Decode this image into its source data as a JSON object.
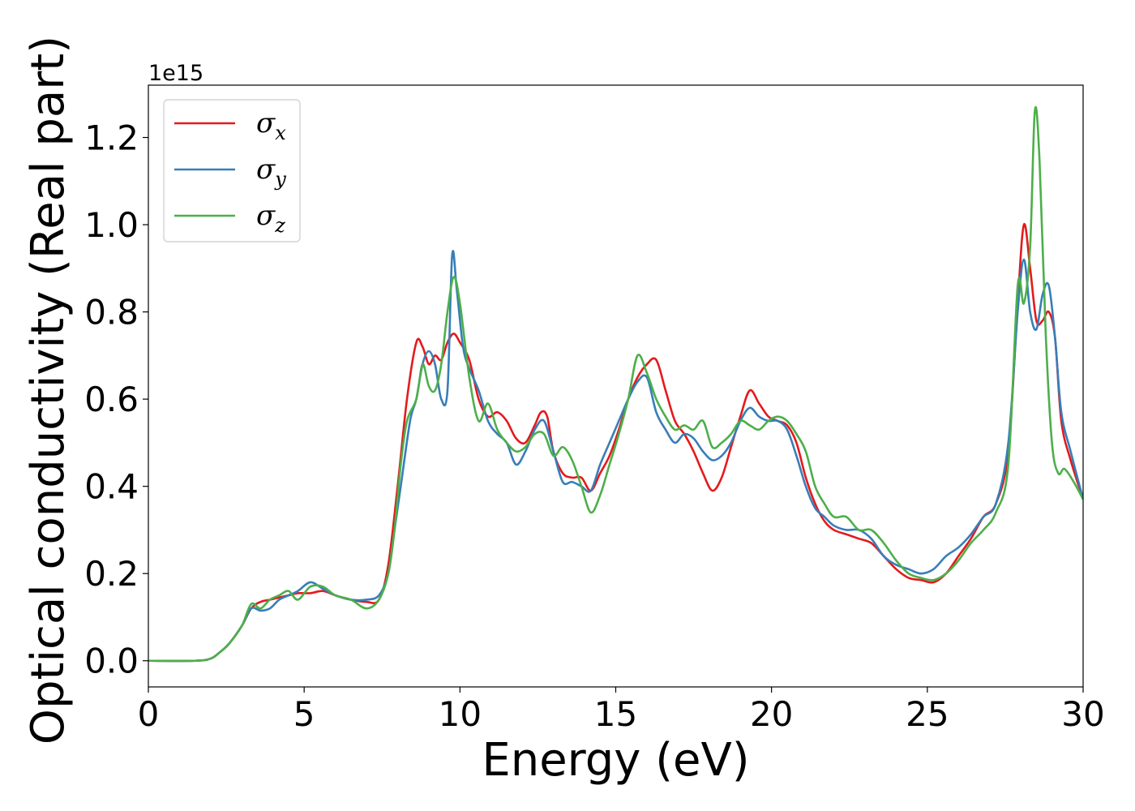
{
  "chart_data": {
    "type": "line",
    "xlabel": "Energy (eV)",
    "ylabel": "Optical conductivity (Real part)",
    "y_offset_label": "1e15",
    "xlim": [
      0,
      30
    ],
    "ylim": [
      -0.06,
      1.32
    ],
    "xticks": [
      0,
      5,
      10,
      15,
      20,
      25,
      30
    ],
    "xtick_labels": [
      "0",
      "5",
      "10",
      "15",
      "20",
      "25",
      "30"
    ],
    "yticks": [
      0.0,
      0.2,
      0.4,
      0.6,
      0.8,
      1.0,
      1.2
    ],
    "ytick_labels": [
      "0.0",
      "0.2",
      "0.4",
      "0.6",
      "0.8",
      "1.0",
      "1.2"
    ],
    "grid": false,
    "legend_position": "top-left",
    "series": [
      {
        "name": "σx",
        "legend_base": "σ",
        "legend_sub": "x",
        "color": "#e41a1c",
        "x": [
          0,
          1.5,
          2,
          2.3,
          2.6,
          3.0,
          3.3,
          3.6,
          3.9,
          4.2,
          4.5,
          4.8,
          5.2,
          5.6,
          6.0,
          6.5,
          7.0,
          7.4,
          7.7,
          8.0,
          8.3,
          8.6,
          8.8,
          9.0,
          9.2,
          9.4,
          9.6,
          9.8,
          10.0,
          10.3,
          10.6,
          10.9,
          11.2,
          11.5,
          11.8,
          12.1,
          12.4,
          12.6,
          12.8,
          13.0,
          13.3,
          13.6,
          13.9,
          14.2,
          14.5,
          14.8,
          15.1,
          15.4,
          15.7,
          16.0,
          16.3,
          16.6,
          16.9,
          17.2,
          17.5,
          17.8,
          18.1,
          18.4,
          18.7,
          19.0,
          19.3,
          19.6,
          19.9,
          20.2,
          20.5,
          20.8,
          21.1,
          21.4,
          21.7,
          22.0,
          22.4,
          22.8,
          23.2,
          23.6,
          24.0,
          24.4,
          24.8,
          25.2,
          25.6,
          26.0,
          26.4,
          26.8,
          27.2,
          27.6,
          27.9,
          28.1,
          28.3,
          28.5,
          28.7,
          28.9,
          29.1,
          29.3,
          29.6,
          30.0
        ],
        "values": [
          0,
          0.0,
          0.005,
          0.02,
          0.04,
          0.08,
          0.12,
          0.135,
          0.14,
          0.145,
          0.15,
          0.155,
          0.155,
          0.16,
          0.15,
          0.14,
          0.135,
          0.14,
          0.22,
          0.4,
          0.6,
          0.73,
          0.72,
          0.68,
          0.7,
          0.69,
          0.73,
          0.75,
          0.73,
          0.69,
          0.6,
          0.56,
          0.57,
          0.55,
          0.51,
          0.5,
          0.54,
          0.57,
          0.56,
          0.48,
          0.43,
          0.42,
          0.42,
          0.39,
          0.43,
          0.47,
          0.53,
          0.6,
          0.65,
          0.68,
          0.69,
          0.62,
          0.55,
          0.52,
          0.48,
          0.43,
          0.39,
          0.42,
          0.49,
          0.56,
          0.62,
          0.59,
          0.56,
          0.55,
          0.54,
          0.5,
          0.42,
          0.36,
          0.32,
          0.3,
          0.29,
          0.28,
          0.27,
          0.24,
          0.21,
          0.19,
          0.185,
          0.18,
          0.2,
          0.24,
          0.28,
          0.33,
          0.36,
          0.48,
          0.82,
          1.0,
          0.9,
          0.78,
          0.78,
          0.8,
          0.74,
          0.55,
          0.46,
          0.37
        ]
      },
      {
        "name": "σy",
        "legend_base": "σ",
        "legend_sub": "y",
        "color": "#377eb8",
        "x": [
          0,
          1.5,
          2,
          2.3,
          2.6,
          3.0,
          3.3,
          3.6,
          3.9,
          4.2,
          4.5,
          4.8,
          5.2,
          5.6,
          6.0,
          6.5,
          7.0,
          7.4,
          7.7,
          7.9,
          8.1,
          8.4,
          8.6,
          8.8,
          9.0,
          9.2,
          9.4,
          9.6,
          9.75,
          9.9,
          10.1,
          10.3,
          10.6,
          10.9,
          11.2,
          11.5,
          11.8,
          12.1,
          12.4,
          12.7,
          13.0,
          13.3,
          13.6,
          13.9,
          14.2,
          14.5,
          14.8,
          15.1,
          15.4,
          15.7,
          16.0,
          16.3,
          16.6,
          16.9,
          17.2,
          17.5,
          17.8,
          18.1,
          18.4,
          18.7,
          19.0,
          19.3,
          19.6,
          19.9,
          20.2,
          20.5,
          20.8,
          21.1,
          21.4,
          21.7,
          22.0,
          22.4,
          22.8,
          23.2,
          23.6,
          24.0,
          24.4,
          24.8,
          25.2,
          25.6,
          26.0,
          26.4,
          26.8,
          27.2,
          27.6,
          27.9,
          28.1,
          28.3,
          28.5,
          28.7,
          28.9,
          29.1,
          29.3,
          29.6,
          30.0
        ],
        "values": [
          0,
          0.0,
          0.005,
          0.02,
          0.04,
          0.08,
          0.12,
          0.115,
          0.12,
          0.14,
          0.15,
          0.16,
          0.18,
          0.165,
          0.15,
          0.14,
          0.14,
          0.15,
          0.2,
          0.3,
          0.4,
          0.55,
          0.6,
          0.68,
          0.71,
          0.68,
          0.6,
          0.62,
          0.93,
          0.85,
          0.72,
          0.67,
          0.62,
          0.55,
          0.52,
          0.5,
          0.45,
          0.48,
          0.53,
          0.55,
          0.48,
          0.41,
          0.41,
          0.4,
          0.39,
          0.45,
          0.5,
          0.55,
          0.6,
          0.64,
          0.65,
          0.57,
          0.53,
          0.5,
          0.52,
          0.51,
          0.48,
          0.46,
          0.47,
          0.5,
          0.55,
          0.58,
          0.56,
          0.55,
          0.55,
          0.53,
          0.47,
          0.4,
          0.35,
          0.33,
          0.31,
          0.3,
          0.3,
          0.28,
          0.24,
          0.22,
          0.21,
          0.2,
          0.21,
          0.24,
          0.26,
          0.29,
          0.33,
          0.36,
          0.5,
          0.8,
          0.92,
          0.8,
          0.76,
          0.84,
          0.86,
          0.74,
          0.57,
          0.48,
          0.37
        ]
      },
      {
        "name": "σz",
        "legend_base": "σ",
        "legend_sub": "z",
        "color": "#4daf4a",
        "x": [
          0,
          1.5,
          2,
          2.3,
          2.6,
          3.0,
          3.3,
          3.6,
          3.9,
          4.2,
          4.5,
          4.8,
          5.2,
          5.6,
          6.0,
          6.5,
          7.0,
          7.4,
          7.7,
          7.9,
          8.1,
          8.3,
          8.6,
          8.8,
          9.0,
          9.2,
          9.4,
          9.6,
          9.8,
          10.0,
          10.3,
          10.6,
          10.9,
          11.2,
          11.5,
          11.8,
          12.1,
          12.4,
          12.7,
          13.0,
          13.3,
          13.6,
          13.9,
          14.2,
          14.5,
          14.8,
          15.1,
          15.4,
          15.7,
          16.0,
          16.3,
          16.6,
          16.9,
          17.2,
          17.5,
          17.8,
          18.1,
          18.4,
          18.7,
          19.0,
          19.3,
          19.6,
          19.9,
          20.2,
          20.5,
          20.8,
          21.1,
          21.4,
          21.7,
          22.0,
          22.4,
          22.8,
          23.2,
          23.6,
          24.0,
          24.4,
          24.8,
          25.2,
          25.6,
          26.0,
          26.4,
          26.8,
          27.2,
          27.6,
          27.9,
          28.1,
          28.3,
          28.45,
          28.6,
          28.8,
          29.0,
          29.2,
          29.4,
          29.7,
          30.0
        ],
        "values": [
          0,
          0.0,
          0.005,
          0.02,
          0.04,
          0.08,
          0.13,
          0.12,
          0.14,
          0.15,
          0.16,
          0.14,
          0.17,
          0.17,
          0.15,
          0.14,
          0.12,
          0.14,
          0.2,
          0.3,
          0.45,
          0.55,
          0.6,
          0.68,
          0.63,
          0.62,
          0.68,
          0.8,
          0.88,
          0.82,
          0.65,
          0.55,
          0.59,
          0.53,
          0.5,
          0.48,
          0.49,
          0.52,
          0.52,
          0.47,
          0.49,
          0.46,
          0.4,
          0.34,
          0.38,
          0.45,
          0.52,
          0.6,
          0.7,
          0.66,
          0.6,
          0.56,
          0.53,
          0.54,
          0.53,
          0.55,
          0.49,
          0.5,
          0.52,
          0.55,
          0.54,
          0.53,
          0.55,
          0.56,
          0.55,
          0.52,
          0.48,
          0.4,
          0.36,
          0.33,
          0.33,
          0.3,
          0.3,
          0.27,
          0.23,
          0.2,
          0.19,
          0.185,
          0.2,
          0.23,
          0.27,
          0.3,
          0.34,
          0.45,
          0.86,
          0.82,
          0.95,
          1.26,
          1.15,
          0.75,
          0.5,
          0.43,
          0.44,
          0.41,
          0.37
        ]
      }
    ]
  }
}
